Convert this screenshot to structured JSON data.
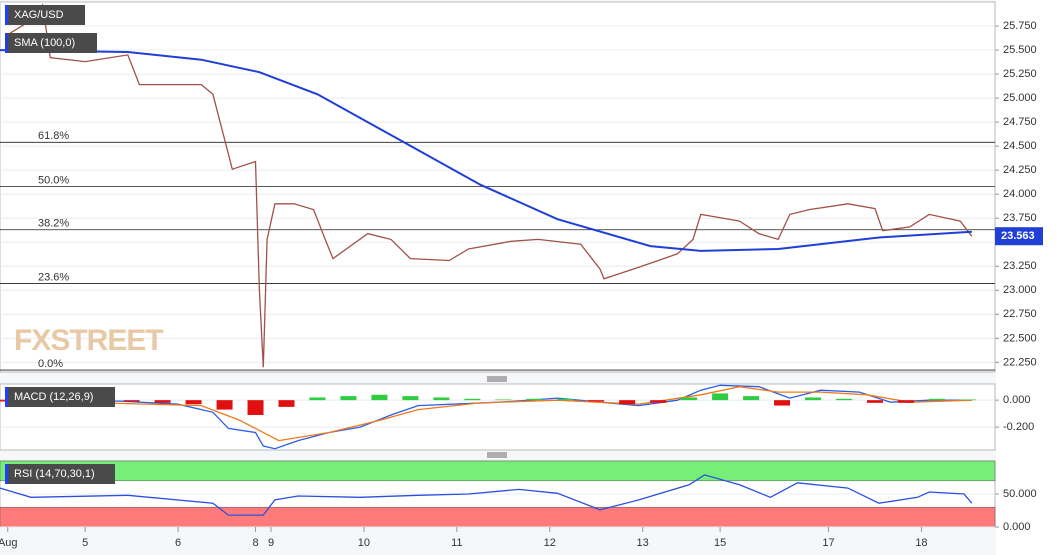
{
  "chart_data": [
    {
      "type": "line",
      "title": "XAG/USD",
      "xlim": [
        -2,
        255
      ],
      "ylim": [
        22.15,
        26.0
      ],
      "yticks": [
        {
          "value": 22.25,
          "label": "22.250"
        },
        {
          "value": 22.5,
          "label": "22.500"
        },
        {
          "value": 22.75,
          "label": "22.750"
        },
        {
          "value": 23,
          "label": "23.000"
        },
        {
          "value": 23.25,
          "label": "23.250"
        },
        {
          "value": 23.5,
          "label": "23.500"
        },
        {
          "value": 23.75,
          "label": "23.750"
        },
        {
          "value": 24,
          "label": "24.000"
        },
        {
          "value": 24.25,
          "label": "24.250"
        },
        {
          "value": 24.5,
          "label": "24.500"
        },
        {
          "value": 24.75,
          "label": "24.750"
        },
        {
          "value": 25,
          "label": "25.000"
        },
        {
          "value": 25.25,
          "label": "25.250"
        },
        {
          "value": 25.5,
          "label": "25.500"
        },
        {
          "value": 25.75,
          "label": "25.750"
        }
      ],
      "series": [
        {
          "name": "XAG/USD",
          "color": "#a0524a",
          "x": [
            0,
            6,
            9,
            11,
            20,
            31,
            34,
            39,
            50,
            53,
            56,
            58,
            64,
            65,
            66,
            67,
            69,
            74,
            79,
            82,
            84,
            93,
            99,
            104,
            114,
            119,
            130,
            137,
            148,
            153,
            154,
            163,
            173,
            177,
            179,
            189,
            194,
            199,
            202,
            207,
            217,
            224,
            226,
            233,
            238,
            246,
            249
          ],
          "values": [
            25.66,
            25.81,
            25.97,
            25.42,
            25.38,
            25.45,
            25.14,
            25.14,
            25.14,
            25.04,
            24.57,
            24.26,
            24.34,
            23.0,
            22.2,
            23.53,
            23.9,
            23.9,
            23.84,
            23.53,
            23.33,
            23.59,
            23.53,
            23.33,
            23.31,
            23.43,
            23.51,
            23.53,
            23.48,
            23.22,
            23.12,
            23.24,
            23.38,
            23.53,
            23.79,
            23.72,
            23.59,
            23.53,
            23.79,
            23.84,
            23.9,
            23.85,
            23.62,
            23.66,
            23.79,
            23.72,
            23.563
          ]
        },
        {
          "name": "SMA (100,0)",
          "color": "#1f3fd6",
          "x": [
            -2,
            31,
            50,
            65,
            80,
            101,
            122,
            142,
            166,
            179,
            199,
            225,
            249
          ],
          "values": [
            25.5,
            25.48,
            25.4,
            25.27,
            25.04,
            24.57,
            24.1,
            23.74,
            23.46,
            23.41,
            23.43,
            23.55,
            23.61
          ]
        }
      ],
      "levels": [
        {
          "label": "61.8%",
          "value": 24.54
        },
        {
          "label": "50.0%",
          "value": 24.08
        },
        {
          "label": "38.2%",
          "value": 23.63
        },
        {
          "label": "23.6%",
          "value": 23.07
        },
        {
          "label": "0.0%",
          "value": 22.17
        }
      ],
      "last_price": 23.563,
      "last_price_color": "#1f3fd6",
      "watermark": "FXSTREET"
    },
    {
      "type": "line",
      "title": "MACD (12,26,9)",
      "xlim": [
        -2,
        255
      ],
      "ylim": [
        -0.37,
        0.12
      ],
      "yticks": [
        {
          "value": -0.2,
          "label": "-0.200"
        },
        {
          "value": 0,
          "label": "0.000"
        }
      ],
      "series": [
        {
          "name": "MACD",
          "color": "#2b5ee8",
          "x": [
            -2,
            29,
            44,
            53,
            57,
            64,
            66,
            69,
            75,
            83,
            91,
            99,
            106,
            127,
            142,
            153,
            163,
            173,
            179,
            184,
            194,
            202,
            210,
            220,
            228,
            238,
            249
          ],
          "values": [
            0,
            -0.007,
            -0.03,
            -0.09,
            -0.21,
            -0.24,
            -0.34,
            -0.36,
            -0.3,
            -0.24,
            -0.2,
            -0.11,
            -0.04,
            -0.015,
            0.015,
            -0.015,
            -0.04,
            0,
            0.074,
            0.11,
            0.1,
            0.015,
            0.074,
            0.06,
            -0.015,
            0,
            0
          ]
        },
        {
          "name": "Signal",
          "color": "#f07a1a",
          "x": [
            -2,
            50,
            60,
            70,
            83,
            96,
            106,
            122,
            142,
            163,
            179,
            189,
            199,
            210,
            222,
            233,
            249
          ],
          "values": [
            0,
            -0.04,
            -0.15,
            -0.3,
            -0.24,
            -0.15,
            -0.07,
            -0.02,
            0,
            -0.03,
            0.04,
            0.1,
            0.06,
            0.06,
            0.04,
            -0.015,
            0
          ]
        },
        {
          "name": "Histogram",
          "type": "bar",
          "color": "#2ecc40",
          "negative_color": "#e01010",
          "x": [
            0,
            8,
            16,
            24,
            32,
            40,
            48,
            56,
            64,
            72,
            80,
            88,
            96,
            104,
            112,
            120,
            128,
            136,
            144,
            152,
            160,
            168,
            176,
            184,
            192,
            200,
            208,
            216,
            224,
            232,
            240,
            248
          ],
          "values": [
            -0.01,
            -0.005,
            0.008,
            0.01,
            -0.01,
            -0.02,
            -0.03,
            -0.07,
            -0.11,
            -0.05,
            0.02,
            0.03,
            0.04,
            0.03,
            0.02,
            0.01,
            0.005,
            0.01,
            0.01,
            -0.01,
            -0.03,
            -0.02,
            0.02,
            0.05,
            0.03,
            -0.04,
            0.02,
            0.01,
            -0.02,
            -0.02,
            0.01,
            0.005
          ]
        }
      ]
    },
    {
      "type": "line",
      "title": "RSI (14,70,30,1)",
      "xlim": [
        -2,
        255
      ],
      "ylim": [
        0,
        100
      ],
      "yticks": [
        {
          "value": 0,
          "label": "0.000"
        },
        {
          "value": 50,
          "label": "50.000"
        }
      ],
      "zones": [
        {
          "range": [
            70,
            100
          ],
          "color": "#77ee77"
        },
        {
          "range": [
            0,
            30
          ],
          "color": "#ff7b7b"
        }
      ],
      "series": [
        {
          "name": "RSI",
          "color": "#2b4fe0",
          "x": [
            -2,
            6,
            31,
            53,
            57,
            66,
            69,
            75,
            91,
            106,
            119,
            132,
            142,
            153,
            163,
            176,
            180,
            189,
            197,
            204,
            217,
            225,
            235,
            238,
            247,
            249
          ],
          "values": [
            59,
            45,
            48,
            36,
            18,
            18,
            41,
            47,
            45,
            48,
            50,
            57,
            51,
            26,
            41,
            64,
            79,
            64,
            45,
            67,
            59,
            36,
            45,
            53,
            50,
            36
          ]
        }
      ],
      "xticks": [
        {
          "value": 0,
          "label": "Aug"
        },
        {
          "value": 20,
          "label": "5"
        },
        {
          "value": 44,
          "label": "6"
        },
        {
          "value": 64,
          "label": "8"
        },
        {
          "value": 68,
          "label": "9"
        },
        {
          "value": 92,
          "label": "10"
        },
        {
          "value": 116,
          "label": "11"
        },
        {
          "value": 140,
          "label": "12"
        },
        {
          "value": 164,
          "label": "13"
        },
        {
          "value": 184,
          "label": "15"
        },
        {
          "value": 212,
          "label": "17"
        },
        {
          "value": 236,
          "label": "18"
        }
      ]
    }
  ]
}
